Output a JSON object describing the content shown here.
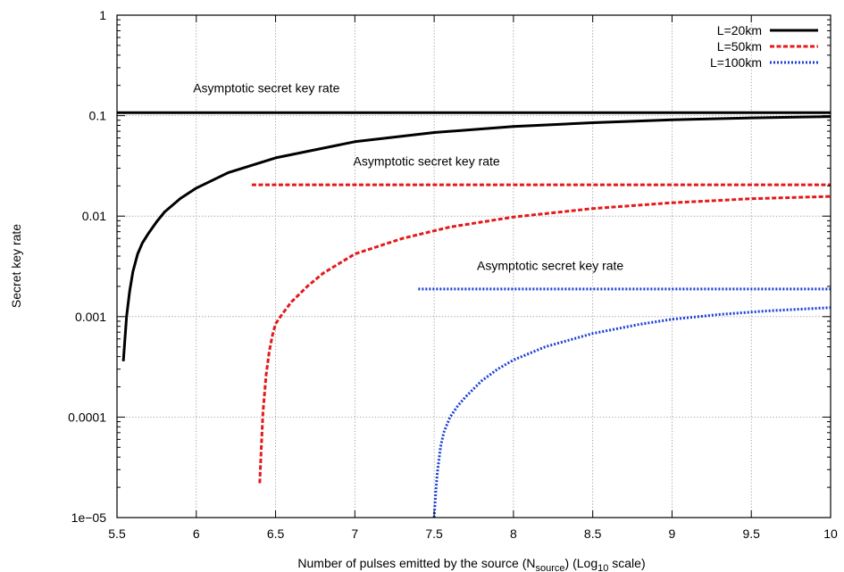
{
  "chart_data": {
    "type": "line",
    "xlabel": "Number of pulses emitted by the source (N",
    "xlabel_sub": "source",
    "xlabel_mid": ") (Log",
    "xlabel_sub2": "10",
    "xlabel_end": " scale)",
    "ylabel": "Secret key rate",
    "xlim": [
      5.5,
      10
    ],
    "ylim": [
      1e-05,
      1
    ],
    "y_scale": "log",
    "grid": true,
    "legend_position": "top-right",
    "x_ticks": [
      5.5,
      6,
      6.5,
      7,
      7.5,
      8,
      8.5,
      9,
      9.5,
      10
    ],
    "x_tick_labels": [
      "5.5",
      "6",
      "6.5",
      "7",
      "7.5",
      "8",
      "8.5",
      "9",
      "9.5",
      "10"
    ],
    "y_ticks": [
      1e-05,
      0.0001,
      0.001,
      0.01,
      0.1,
      1
    ],
    "y_tick_labels": [
      "1e−05",
      "0.0001",
      "0.001",
      "0.01",
      "0.1",
      "1"
    ],
    "series": [
      {
        "name": "L=20km",
        "color": "#000000",
        "style": "solid",
        "x": [
          5.54,
          5.56,
          5.58,
          5.6,
          5.63,
          5.66,
          5.7,
          5.75,
          5.8,
          5.9,
          6.0,
          6.2,
          6.5,
          7.0,
          7.5,
          8.0,
          8.5,
          9.0,
          9.5,
          10.0
        ],
        "y": [
          0.00036,
          0.001,
          0.0018,
          0.0028,
          0.0042,
          0.0054,
          0.0068,
          0.0088,
          0.011,
          0.015,
          0.019,
          0.027,
          0.038,
          0.055,
          0.068,
          0.078,
          0.085,
          0.091,
          0.095,
          0.098
        ],
        "asymptote": 0.107,
        "asymptote_x": [
          5.5,
          10
        ]
      },
      {
        "name": "L=50km",
        "color": "#e31a1c",
        "style": "dashed",
        "x": [
          6.4,
          6.41,
          6.42,
          6.44,
          6.46,
          6.48,
          6.5,
          6.55,
          6.6,
          6.7,
          6.8,
          7.0,
          7.3,
          7.6,
          8.0,
          8.5,
          9.0,
          9.5,
          10.0
        ],
        "y": [
          2.2e-05,
          5e-05,
          0.00011,
          0.00026,
          0.00045,
          0.00065,
          0.00085,
          0.0011,
          0.0014,
          0.002,
          0.0027,
          0.0042,
          0.006,
          0.0078,
          0.0098,
          0.0119,
          0.0136,
          0.0149,
          0.0157
        ],
        "asymptote": 0.0205,
        "asymptote_x": [
          6.35,
          10
        ]
      },
      {
        "name": "L=100km",
        "color": "#1a3fd6",
        "style": "dotted",
        "x": [
          7.5,
          7.51,
          7.52,
          7.54,
          7.56,
          7.6,
          7.65,
          7.7,
          7.8,
          7.9,
          8.0,
          8.2,
          8.5,
          8.8,
          9.0,
          9.3,
          9.6,
          10.0
        ],
        "y": [
          1e-05,
          1.8e-05,
          2.8e-05,
          5e-05,
          7e-05,
          0.0001,
          0.00013,
          0.00016,
          0.00023,
          0.0003,
          0.00037,
          0.0005,
          0.00068,
          0.00084,
          0.00094,
          0.00105,
          0.00114,
          0.00123
        ],
        "asymptote": 0.00188,
        "asymptote_x": [
          7.4,
          10
        ]
      }
    ],
    "annotations": [
      {
        "text": "Asymptotic secret key rate",
        "x": 5.98,
        "y": 0.17
      },
      {
        "text": "Asymptotic secret key rate",
        "x": 6.99,
        "y": 0.032
      },
      {
        "text": "Asymptotic secret key rate",
        "x": 7.77,
        "y": 0.0029
      }
    ]
  }
}
